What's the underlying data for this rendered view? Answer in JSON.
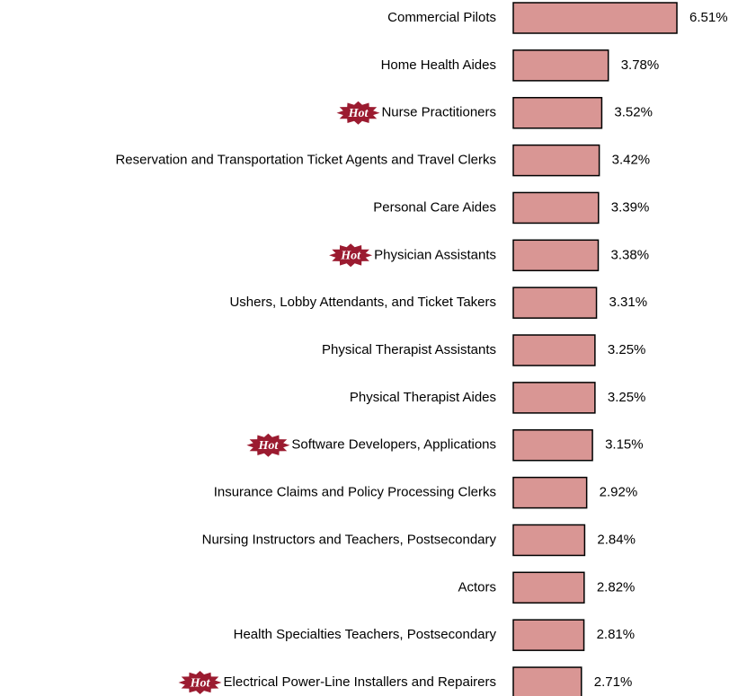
{
  "chart_data": {
    "type": "bar",
    "orientation": "horizontal",
    "categories": [
      "Commercial Pilots",
      "Home Health Aides",
      "Nurse Practitioners",
      "Reservation and Transportation Ticket Agents and Travel Clerks",
      "Personal Care Aides",
      "Physician Assistants",
      "Ushers, Lobby Attendants, and Ticket Takers",
      "Physical Therapist Assistants",
      "Physical Therapist Aides",
      "Software Developers, Applications",
      "Insurance Claims and Policy Processing Clerks",
      "Nursing Instructors and Teachers, Postsecondary",
      "Actors",
      "Health Specialties Teachers, Postsecondary",
      "Electrical Power-Line Installers and Repairers"
    ],
    "values": [
      6.51,
      3.78,
      3.52,
      3.42,
      3.39,
      3.38,
      3.31,
      3.25,
      3.25,
      3.15,
      2.92,
      2.84,
      2.82,
      2.81,
      2.71
    ],
    "value_labels": [
      "6.51%",
      "3.78%",
      "3.52%",
      "3.42%",
      "3.39%",
      "3.38%",
      "3.31%",
      "3.25%",
      "3.25%",
      "3.15%",
      "2.92%",
      "2.84%",
      "2.82%",
      "2.81%",
      "2.71%"
    ],
    "badge": "Hot",
    "hot": [
      false,
      false,
      true,
      false,
      false,
      true,
      false,
      false,
      false,
      true,
      false,
      false,
      false,
      false,
      true
    ],
    "color": "#d99694"
  }
}
